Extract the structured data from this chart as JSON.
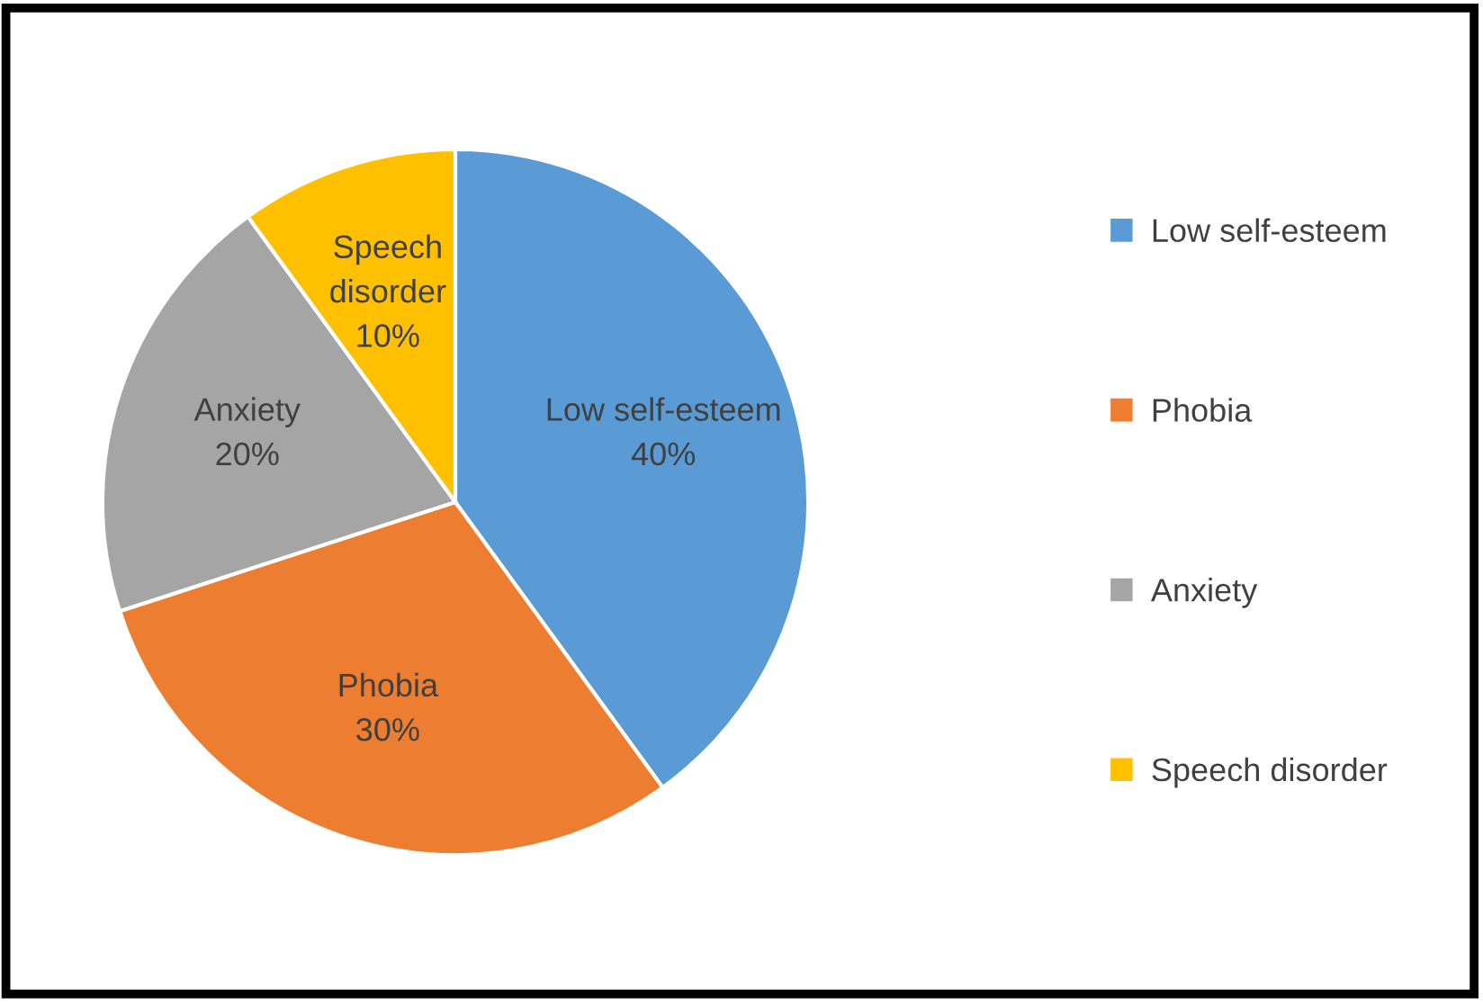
{
  "chart_data": {
    "type": "pie",
    "categories": [
      "Low self-esteem",
      "Phobia",
      "Anxiety",
      "Speech disorder"
    ],
    "values": [
      40,
      30,
      20,
      10
    ],
    "colors": [
      "#5b9bd5",
      "#ed7d31",
      "#a5a5a5",
      "#ffc000"
    ],
    "value_labels": [
      "40%",
      "30%",
      "20%",
      "10%"
    ],
    "legend": "right"
  }
}
